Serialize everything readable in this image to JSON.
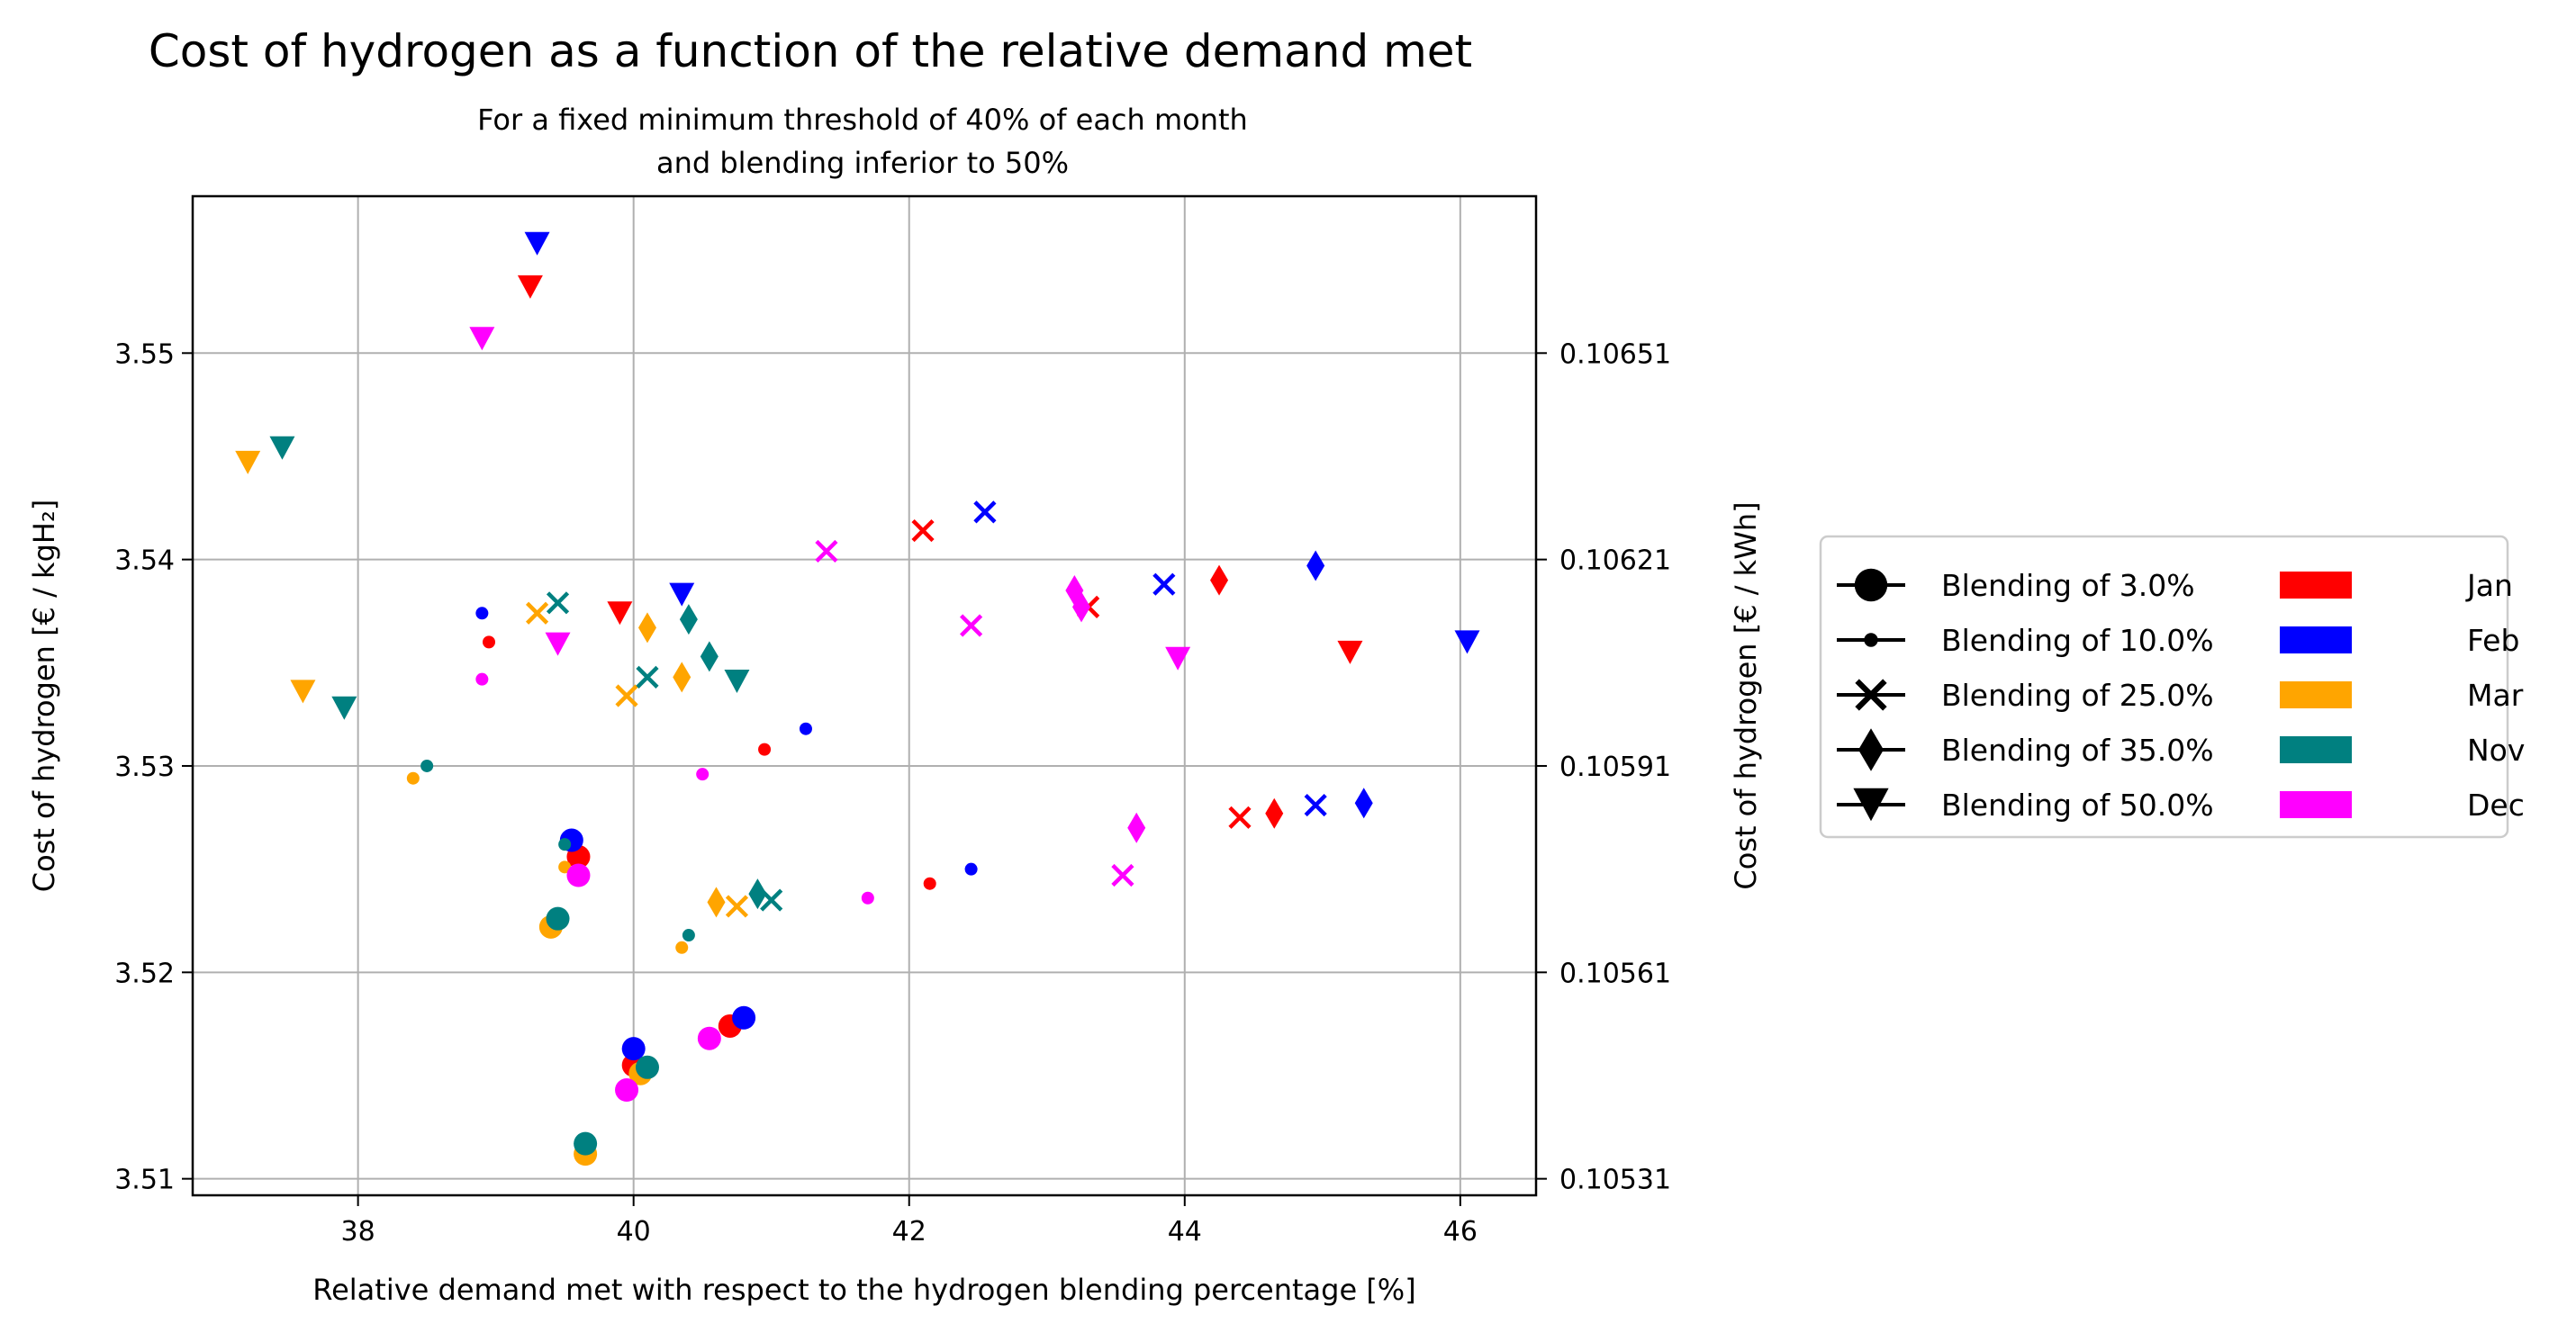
{
  "chart_data": {
    "type": "scatter",
    "title": "Cost of hydrogen as a function of the relative demand met",
    "subtitle_lines": [
      "For a fixed minimum threshold of 40% of each month",
      "and blending inferior to 50%"
    ],
    "xlabel": "Relative demand met with respect to the hydrogen blending percentage [%]",
    "ylabel": "Cost of hydrogen [€ / kgH₂]",
    "ylabel2": "Cost of hydrogen [€ / kWh]",
    "xlim": [
      36.8,
      46.55
    ],
    "ylim": [
      3.5092,
      3.5576
    ],
    "xticks": [
      38,
      40,
      42,
      44,
      46
    ],
    "xtick_labels": [
      "38",
      "40",
      "42",
      "44",
      "46"
    ],
    "yticks": [
      3.51,
      3.52,
      3.53,
      3.54,
      3.55
    ],
    "ytick_labels": [
      "3.51",
      "3.52",
      "3.53",
      "3.54",
      "3.55"
    ],
    "y2ticks": [
      3.51,
      3.52,
      3.53,
      3.54,
      3.55
    ],
    "y2tick_labels": [
      "0.10531",
      "0.10561",
      "0.10591",
      "0.10621",
      "0.10651"
    ],
    "grid": true,
    "legend_position": "outside-right",
    "months": [
      {
        "name": "Jan",
        "color": "#ff0000"
      },
      {
        "name": "Feb",
        "color": "#0000ff"
      },
      {
        "name": "Mar",
        "color": "#ffa500"
      },
      {
        "name": "Nov",
        "color": "#008080"
      },
      {
        "name": "Dec",
        "color": "#ff00ff"
      }
    ],
    "blendings": [
      {
        "label": "Blending of 3.0%",
        "marker": "circle-large"
      },
      {
        "label": "Blending of 10.0%",
        "marker": "circle-small"
      },
      {
        "label": "Blending of 25.0%",
        "marker": "x"
      },
      {
        "label": "Blending of 35.0%",
        "marker": "diamond"
      },
      {
        "label": "Blending of 50.0%",
        "marker": "triangle-down"
      }
    ],
    "series": [
      {
        "month": "Jan",
        "blending": "Blending of 3.0%",
        "points": [
          [
            39.6,
            3.5256
          ],
          [
            40.0,
            3.5155
          ],
          [
            40.7,
            3.5174
          ]
        ]
      },
      {
        "month": "Jan",
        "blending": "Blending of 10.0%",
        "points": [
          [
            38.95,
            3.536
          ],
          [
            40.95,
            3.5308
          ],
          [
            42.15,
            3.5243
          ]
        ]
      },
      {
        "month": "Jan",
        "blending": "Blending of 25.0%",
        "points": [
          [
            42.1,
            3.5414
          ],
          [
            43.3,
            3.5377
          ],
          [
            44.4,
            3.5275
          ]
        ]
      },
      {
        "month": "Jan",
        "blending": "Blending of 35.0%",
        "points": [
          [
            44.25,
            3.539
          ],
          [
            44.65,
            3.5277
          ]
        ]
      },
      {
        "month": "Jan",
        "blending": "Blending of 50.0%",
        "points": [
          [
            39.25,
            3.5532
          ],
          [
            39.9,
            3.5374
          ],
          [
            45.2,
            3.5355
          ]
        ]
      },
      {
        "month": "Feb",
        "blending": "Blending of 3.0%",
        "points": [
          [
            39.55,
            3.5264
          ],
          [
            40.0,
            3.5163
          ],
          [
            40.8,
            3.5178
          ]
        ]
      },
      {
        "month": "Feb",
        "blending": "Blending of 10.0%",
        "points": [
          [
            38.9,
            3.5374
          ],
          [
            41.25,
            3.5318
          ],
          [
            42.45,
            3.525
          ]
        ]
      },
      {
        "month": "Feb",
        "blending": "Blending of 25.0%",
        "points": [
          [
            42.55,
            3.5423
          ],
          [
            43.85,
            3.5388
          ],
          [
            44.95,
            3.5281
          ]
        ]
      },
      {
        "month": "Feb",
        "blending": "Blending of 35.0%",
        "points": [
          [
            44.95,
            3.5397
          ],
          [
            45.3,
            3.5282
          ]
        ]
      },
      {
        "month": "Feb",
        "blending": "Blending of 50.0%",
        "points": [
          [
            39.3,
            3.5553
          ],
          [
            40.35,
            3.5383
          ],
          [
            46.05,
            3.536
          ]
        ]
      },
      {
        "month": "Mar",
        "blending": "Blending of 3.0%",
        "points": [
          [
            39.4,
            3.5222
          ],
          [
            39.65,
            3.5112
          ],
          [
            40.05,
            3.5151
          ]
        ]
      },
      {
        "month": "Mar",
        "blending": "Blending of 10.0%",
        "points": [
          [
            38.4,
            3.5294
          ],
          [
            39.5,
            3.5251
          ],
          [
            40.35,
            3.5212
          ]
        ]
      },
      {
        "month": "Mar",
        "blending": "Blending of 25.0%",
        "points": [
          [
            39.3,
            3.5374
          ],
          [
            39.95,
            3.5334
          ],
          [
            40.75,
            3.5232
          ]
        ]
      },
      {
        "month": "Mar",
        "blending": "Blending of 35.0%",
        "points": [
          [
            40.1,
            3.5367
          ],
          [
            40.35,
            3.5343
          ],
          [
            40.6,
            3.5234
          ]
        ]
      },
      {
        "month": "Mar",
        "blending": "Blending of 50.0%",
        "points": [
          [
            37.2,
            3.5447
          ],
          [
            37.6,
            3.5336
          ]
        ]
      },
      {
        "month": "Nov",
        "blending": "Blending of 3.0%",
        "points": [
          [
            39.45,
            3.5226
          ],
          [
            39.65,
            3.5117
          ],
          [
            40.1,
            3.5154
          ]
        ]
      },
      {
        "month": "Nov",
        "blending": "Blending of 10.0%",
        "points": [
          [
            38.5,
            3.53
          ],
          [
            39.5,
            3.5262
          ],
          [
            40.4,
            3.5218
          ]
        ]
      },
      {
        "month": "Nov",
        "blending": "Blending of 25.0%",
        "points": [
          [
            39.45,
            3.5379
          ],
          [
            40.1,
            3.5343
          ],
          [
            41.0,
            3.5235
          ]
        ]
      },
      {
        "month": "Nov",
        "blending": "Blending of 35.0%",
        "points": [
          [
            40.4,
            3.5371
          ],
          [
            40.55,
            3.5353
          ],
          [
            40.9,
            3.5238
          ]
        ]
      },
      {
        "month": "Nov",
        "blending": "Blending of 50.0%",
        "points": [
          [
            37.45,
            3.5454
          ],
          [
            37.9,
            3.5328
          ],
          [
            40.75,
            3.5341
          ]
        ]
      },
      {
        "month": "Dec",
        "blending": "Blending of 3.0%",
        "points": [
          [
            39.6,
            3.5247
          ],
          [
            39.95,
            3.5143
          ],
          [
            40.55,
            3.5168
          ]
        ]
      },
      {
        "month": "Dec",
        "blending": "Blending of 10.0%",
        "points": [
          [
            38.9,
            3.5342
          ],
          [
            40.5,
            3.5296
          ],
          [
            41.7,
            3.5236
          ]
        ]
      },
      {
        "month": "Dec",
        "blending": "Blending of 25.0%",
        "points": [
          [
            41.4,
            3.5404
          ],
          [
            42.45,
            3.5368
          ],
          [
            43.55,
            3.5247
          ]
        ]
      },
      {
        "month": "Dec",
        "blending": "Blending of 35.0%",
        "points": [
          [
            43.2,
            3.5385
          ],
          [
            43.25,
            3.5377
          ],
          [
            43.65,
            3.527
          ]
        ]
      },
      {
        "month": "Dec",
        "blending": "Blending of 50.0%",
        "points": [
          [
            38.9,
            3.5507
          ],
          [
            39.45,
            3.5359
          ],
          [
            43.95,
            3.5352
          ]
        ]
      }
    ]
  }
}
